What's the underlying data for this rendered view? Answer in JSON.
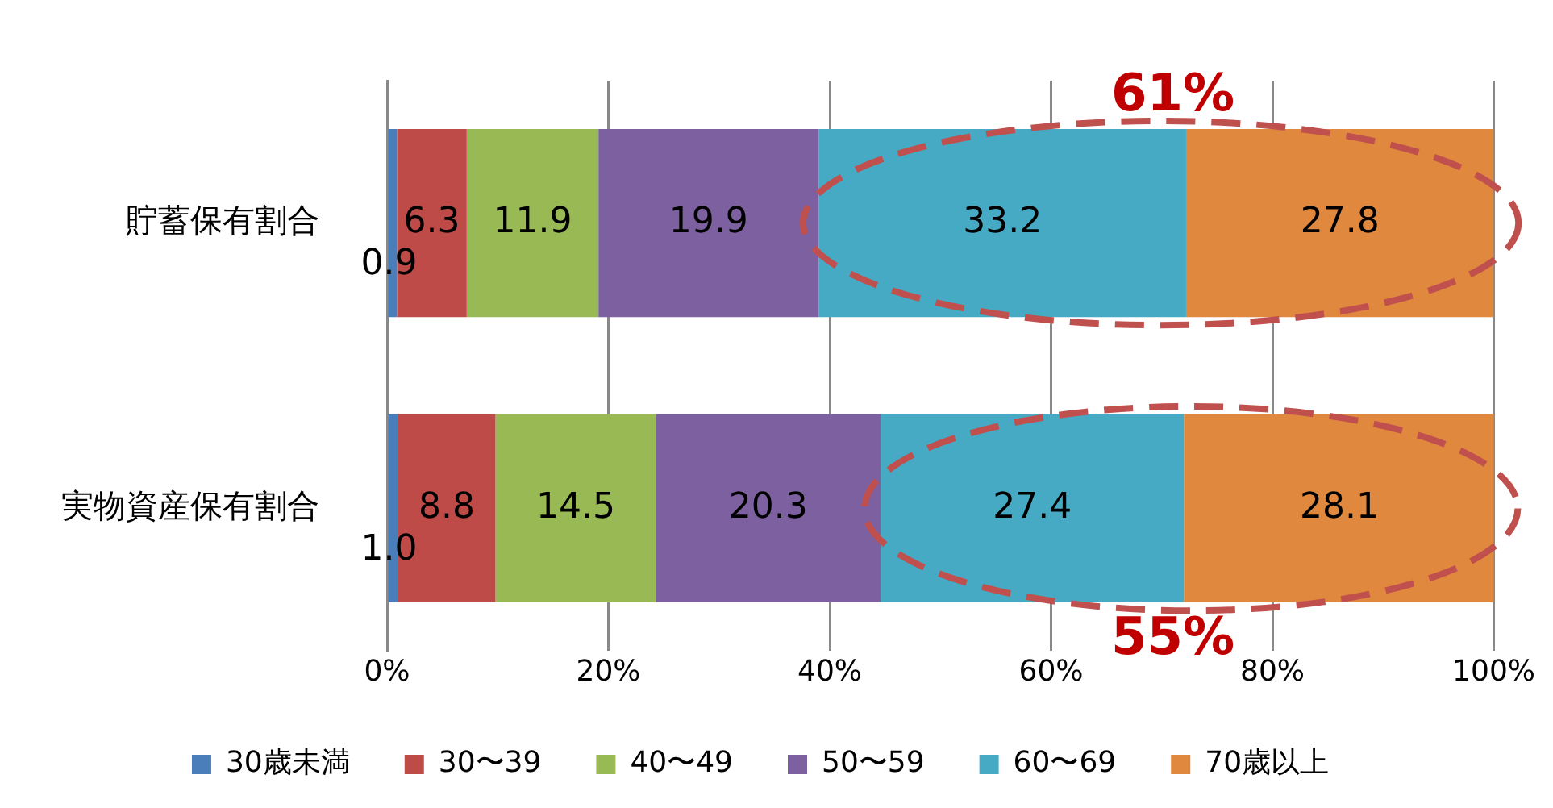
{
  "chart_data": {
    "type": "bar",
    "orientation": "horizontal",
    "stacked": true,
    "categories": [
      "貯蓄保有割合",
      "実物資産保有割合"
    ],
    "series": [
      {
        "name": "30歳未満",
        "color": "#4a7ebb",
        "values": [
          0.9,
          1.0
        ],
        "value_labels": [
          "0.9",
          "1.0"
        ]
      },
      {
        "name": "30〜39",
        "color": "#be4b48",
        "values": [
          6.3,
          8.8
        ],
        "value_labels": [
          "6.3",
          "8.8"
        ]
      },
      {
        "name": "40〜49",
        "color": "#98b954",
        "values": [
          11.9,
          14.5
        ],
        "value_labels": [
          "11.9",
          "14.5"
        ]
      },
      {
        "name": "50〜59",
        "color": "#7d60a0",
        "values": [
          19.9,
          20.3
        ],
        "value_labels": [
          "19.9",
          "20.3"
        ]
      },
      {
        "name": "60〜69",
        "color": "#46aac5",
        "values": [
          33.2,
          27.4
        ],
        "value_labels": [
          "33.2",
          "27.4"
        ]
      },
      {
        "name": "70歳以上",
        "color": "#e0883e",
        "values": [
          27.8,
          28.1
        ],
        "value_labels": [
          "27.8",
          "28.1"
        ]
      }
    ],
    "xlim": [
      0,
      100
    ],
    "xticks": [
      {
        "value": 0,
        "label": "0%"
      },
      {
        "value": 20,
        "label": "20%"
      },
      {
        "value": 40,
        "label": "40%"
      },
      {
        "value": 60,
        "label": "60%"
      },
      {
        "value": 80,
        "label": "80%"
      },
      {
        "value": 100,
        "label": "100%"
      }
    ],
    "grid": "x",
    "legend": "bottom",
    "annotations": [
      "61%",
      "55%"
    ]
  }
}
